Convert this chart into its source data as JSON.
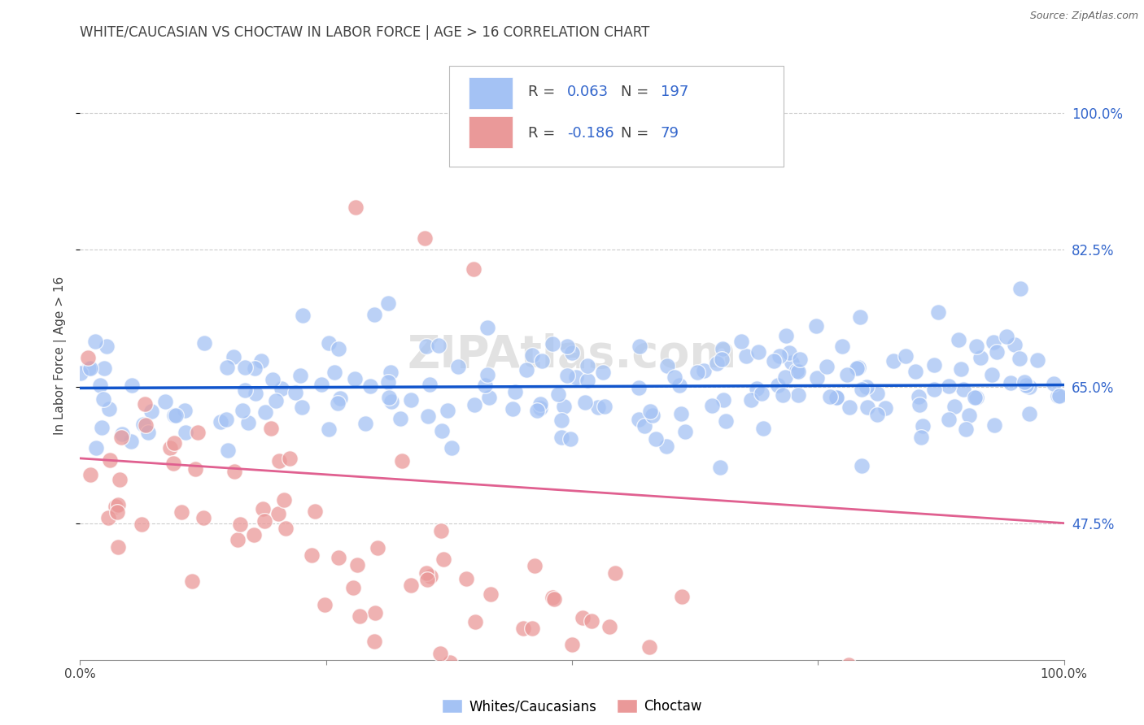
{
  "title": "WHITE/CAUCASIAN VS CHOCTAW IN LABOR FORCE | AGE > 16 CORRELATION CHART",
  "source": "Source: ZipAtlas.com",
  "ylabel": "In Labor Force | Age > 16",
  "xlim": [
    0.0,
    1.0
  ],
  "ylim": [
    0.3,
    1.08
  ],
  "x_tick_labels": [
    "0.0%",
    "100.0%"
  ],
  "x_tick_positions": [
    0.0,
    1.0
  ],
  "y_tick_labels": [
    "47.5%",
    "65.0%",
    "82.5%",
    "100.0%"
  ],
  "y_tick_positions": [
    0.475,
    0.65,
    0.825,
    1.0
  ],
  "blue_R": 0.063,
  "blue_N": 197,
  "pink_R": -0.186,
  "pink_N": 79,
  "blue_color": "#a4c2f4",
  "pink_color": "#ea9999",
  "blue_line_color": "#1155cc",
  "pink_line_color": "#e06090",
  "legend_label_blue": "Whites/Caucasians",
  "legend_label_pink": "Choctaw",
  "watermark": "ZIPAtlas.com",
  "blue_trend_y0": 0.648,
  "blue_trend_y1": 0.652,
  "pink_trend_y0": 0.558,
  "pink_trend_y1": 0.475,
  "background_color": "#ffffff",
  "grid_color": "#cccccc",
  "title_color": "#434343",
  "tick_label_color_right": "#3366cc",
  "tick_label_color_bottom": "#434343",
  "legend_text_color": "#3366cc",
  "legend_R_color": "#434343"
}
